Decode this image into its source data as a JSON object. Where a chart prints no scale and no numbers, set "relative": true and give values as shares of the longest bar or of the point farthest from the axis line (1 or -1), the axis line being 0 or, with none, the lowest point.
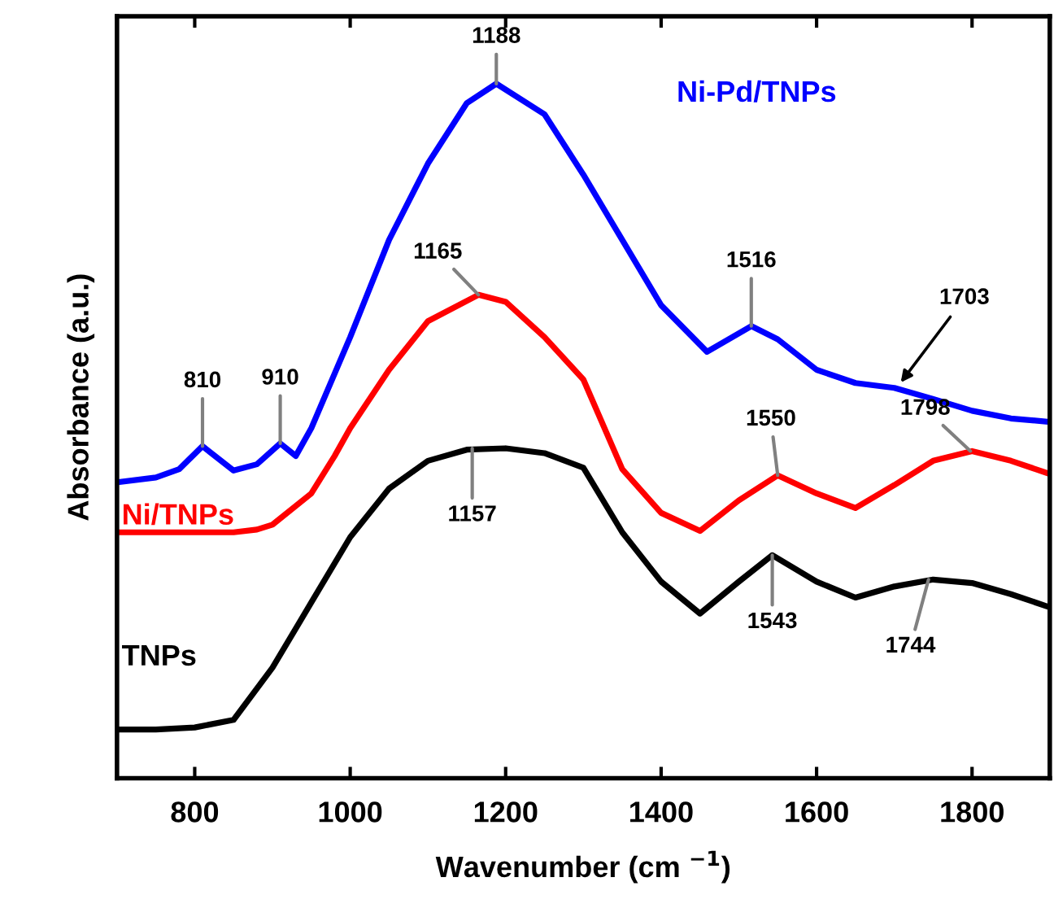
{
  "chart_data": {
    "type": "line",
    "relative": true,
    "xlabel": "Wavenumber (cm $^{−1}$)",
    "ylabel": "Absorbance (a.u.)",
    "xlim": [
      700,
      1900
    ],
    "xticks": [
      800,
      1000,
      1200,
      1400,
      1600,
      1800
    ],
    "tick_labels": "x",
    "grid": false,
    "legend": false,
    "marker": "none",
    "line_style": "solid",
    "series": [
      {
        "name": "Ni-Pd/TNPs",
        "color": "#0000ff",
        "x": [
          700,
          750,
          780,
          810,
          850,
          880,
          910,
          930,
          950,
          1000,
          1050,
          1100,
          1150,
          1188,
          1250,
          1300,
          1350,
          1400,
          1459,
          1516,
          1550,
          1600,
          1650,
          1700,
          1750,
          1800,
          1850,
          1900
        ],
        "values": [
          0.426,
          0.433,
          0.445,
          0.478,
          0.443,
          0.452,
          0.482,
          0.464,
          0.504,
          0.635,
          0.775,
          0.885,
          0.972,
          1.0,
          0.956,
          0.869,
          0.775,
          0.681,
          0.614,
          0.651,
          0.632,
          0.588,
          0.569,
          0.562,
          0.546,
          0.529,
          0.518,
          0.513
        ]
      },
      {
        "name": "Ni/TNPs",
        "color": "#ff0000",
        "x": [
          700,
          800,
          850,
          880,
          900,
          950,
          980,
          1000,
          1050,
          1100,
          1165,
          1200,
          1250,
          1300,
          1350,
          1400,
          1450,
          1500,
          1550,
          1600,
          1650,
          1700,
          1750,
          1800,
          1850,
          1900
        ],
        "values": [
          0.354,
          0.354,
          0.354,
          0.358,
          0.365,
          0.41,
          0.464,
          0.504,
          0.588,
          0.658,
          0.696,
          0.686,
          0.635,
          0.574,
          0.445,
          0.382,
          0.356,
          0.4,
          0.436,
          0.41,
          0.389,
          0.422,
          0.457,
          0.471,
          0.457,
          0.438
        ]
      },
      {
        "name": "TNPs",
        "color": "#000000",
        "x": [
          700,
          750,
          800,
          850,
          900,
          950,
          1000,
          1050,
          1100,
          1150,
          1200,
          1250,
          1300,
          1350,
          1400,
          1450,
          1500,
          1543,
          1600,
          1650,
          1700,
          1750,
          1800,
          1850,
          1900
        ],
        "values": [
          0.07,
          0.07,
          0.073,
          0.084,
          0.159,
          0.253,
          0.347,
          0.417,
          0.457,
          0.473,
          0.475,
          0.468,
          0.447,
          0.354,
          0.283,
          0.237,
          0.283,
          0.321,
          0.283,
          0.26,
          0.276,
          0.286,
          0.281,
          0.265,
          0.246
        ]
      }
    ],
    "annotations": [
      {
        "text": "810",
        "x": 810,
        "y": 0.478
      },
      {
        "text": "910",
        "x": 910,
        "y": 0.482
      },
      {
        "text": "1188",
        "x": 1188,
        "y": 1.0
      },
      {
        "text": "1165",
        "x": 1165,
        "y": 0.696
      },
      {
        "text": "1516",
        "x": 1516,
        "y": 0.651
      },
      {
        "text": "1703",
        "x": 1703,
        "y": 0.562
      },
      {
        "text": "1550",
        "x": 1550,
        "y": 0.436
      },
      {
        "text": "1798",
        "x": 1798,
        "y": 0.471
      },
      {
        "text": "1157",
        "x": 1157,
        "y": 0.475
      },
      {
        "text": "1543",
        "x": 1543,
        "y": 0.321
      },
      {
        "text": "1744",
        "x": 1744,
        "y": 0.286
      }
    ]
  }
}
